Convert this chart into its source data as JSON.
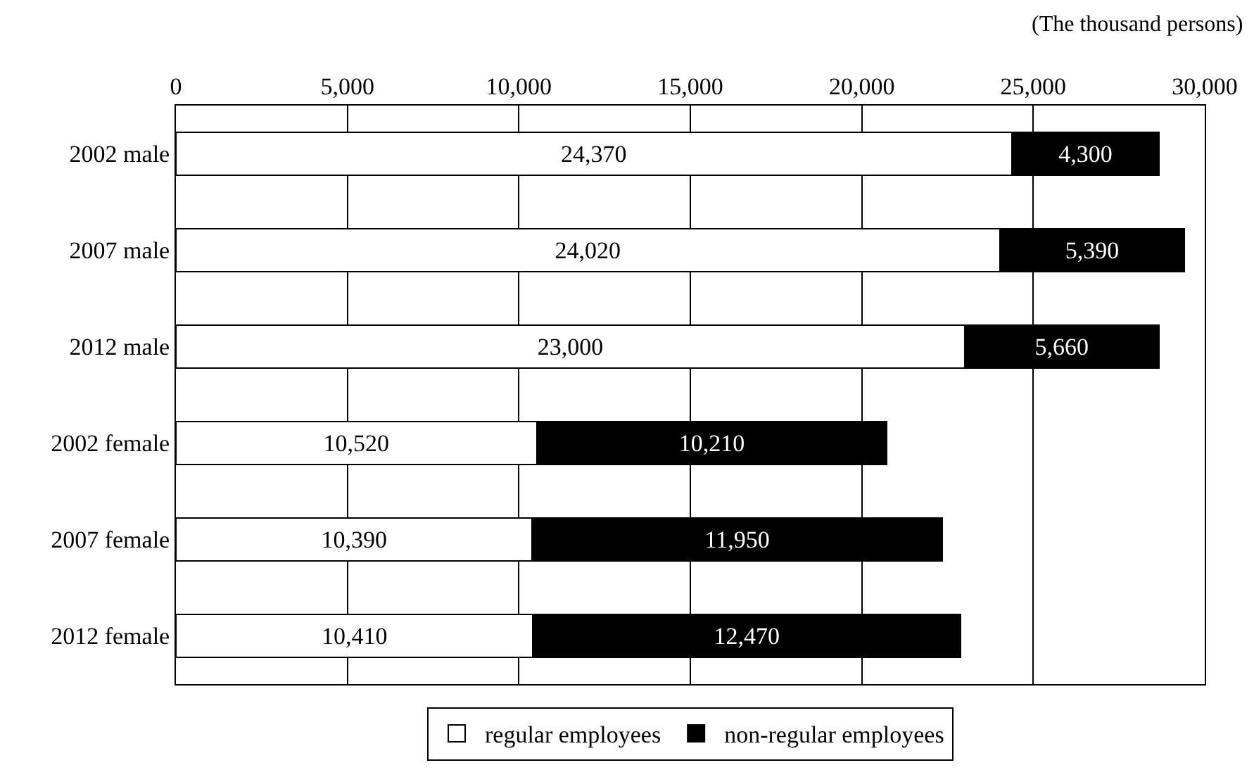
{
  "chart_data": {
    "type": "bar",
    "orientation": "horizontal",
    "stacked": true,
    "categories": [
      "2002 male",
      "2007 male",
      "2012 male",
      "2002 female",
      "2007 female",
      "2012 female"
    ],
    "series": [
      {
        "name": "regular employees",
        "color": "#ffffff",
        "values": [
          24370,
          24020,
          23000,
          10520,
          10390,
          10410
        ],
        "value_labels": [
          "24,370",
          "24,020",
          "23,000",
          "10,520",
          "10,390",
          "10,410"
        ]
      },
      {
        "name": "non-regular employees",
        "color": "#000000",
        "values": [
          4300,
          5390,
          5660,
          10210,
          11950,
          12470
        ],
        "value_labels": [
          "4,300",
          "5,390",
          "5,660",
          "10,210",
          "11,950",
          "12,470"
        ]
      }
    ],
    "xlim": [
      0,
      30000
    ],
    "xticks": [
      0,
      {
        "value": 5000,
        "label": "5,000"
      },
      {
        "value": 10000,
        "label": "10,000"
      },
      {
        "value": 15000,
        "label": "15,000"
      },
      {
        "value": 20000,
        "label": "20,000"
      },
      {
        "value": 25000,
        "label": "25,000"
      },
      {
        "value": 30000,
        "label": "30,000"
      }
    ],
    "annotations": [
      "(The thousand persons)"
    ],
    "grid": "x",
    "legend": "bottom"
  }
}
